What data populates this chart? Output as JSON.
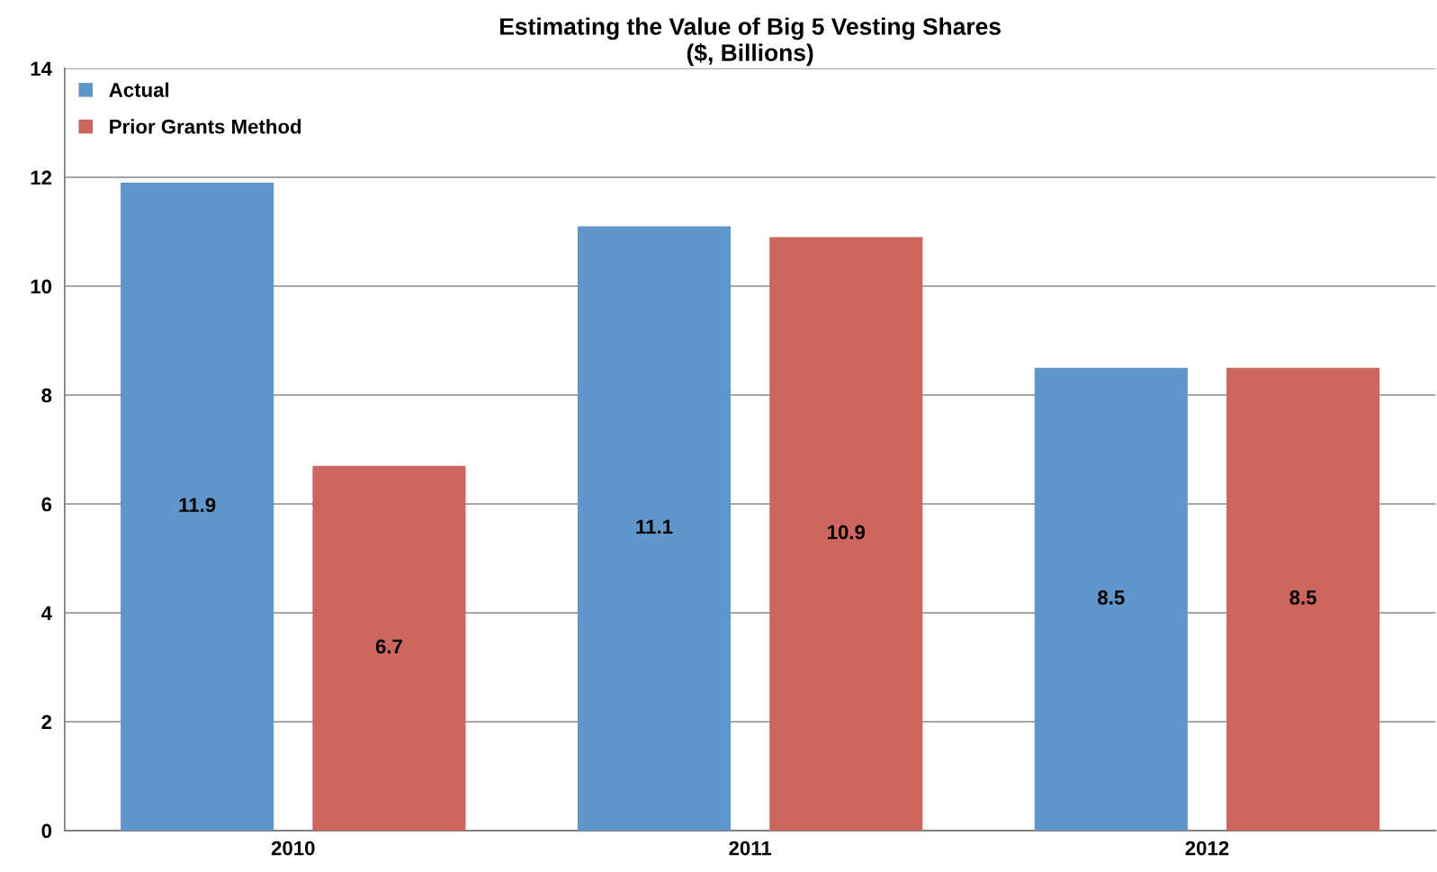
{
  "chart_data": {
    "type": "bar",
    "title": "Estimating the Value of Big 5 Vesting Shares\n($, Billions)",
    "categories": [
      "2010",
      "2011",
      "2012"
    ],
    "series": [
      {
        "name": "Actual",
        "color": "#6096c9",
        "values": [
          11.9,
          11.1,
          8.5
        ]
      },
      {
        "name": "Prior Grants Method",
        "color": "#cd665f",
        "values": [
          6.7,
          10.9,
          8.5
        ]
      }
    ],
    "ylim": [
      0,
      14
    ],
    "yticks": [
      0,
      2,
      4,
      6,
      8,
      10,
      12,
      14
    ],
    "grid": "y",
    "legend": "top left",
    "data_labels": true
  }
}
